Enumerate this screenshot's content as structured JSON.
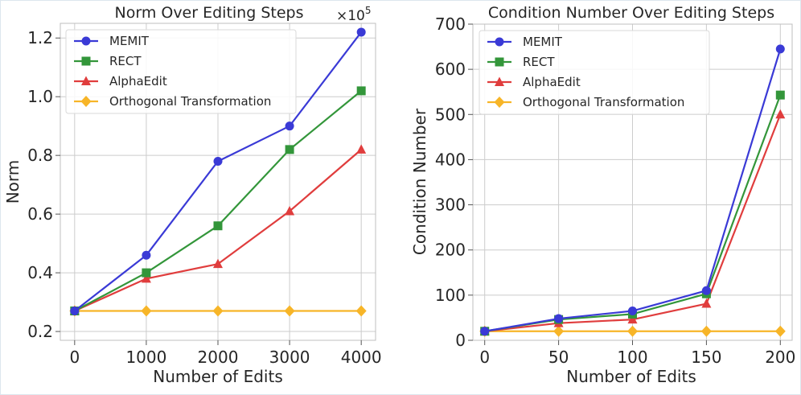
{
  "colors": {
    "memit": "#3a3ad6",
    "rect": "#33963a",
    "alphaedit": "#e03d3d",
    "orthogonal": "#f7b528",
    "grid": "#cccccc"
  },
  "chart_data": [
    {
      "type": "line",
      "title": "Norm Over Editing Steps",
      "xlabel": "Number of Edits",
      "ylabel": "Norm",
      "scale_label": "×10",
      "scale_exponent": "5",
      "x": [
        0,
        1000,
        2000,
        3000,
        4000
      ],
      "xticks": [
        "0",
        "1000",
        "2000",
        "3000",
        "4000"
      ],
      "yticks": [
        "0.2",
        "0.4",
        "0.6",
        "0.8",
        "1.0",
        "1.2"
      ],
      "xlim": [
        -200,
        4200
      ],
      "ylim": [
        0.17,
        1.25
      ],
      "grid": true,
      "legend_position": "top-left",
      "series": [
        {
          "name": "MEMIT",
          "marker": "circle",
          "color_key": "memit",
          "values": [
            27000,
            46000,
            78000,
            90000,
            122000
          ]
        },
        {
          "name": "RECT",
          "marker": "square",
          "color_key": "rect",
          "values": [
            27000,
            40000,
            56000,
            82000,
            102000
          ]
        },
        {
          "name": "AlphaEdit",
          "marker": "triangle",
          "color_key": "alphaedit",
          "values": [
            27000,
            38000,
            43000,
            61000,
            82000
          ]
        },
        {
          "name": "Orthogonal Transformation",
          "marker": "diamond",
          "color_key": "orthogonal",
          "values": [
            27000,
            27000,
            27000,
            27000,
            27000
          ]
        }
      ]
    },
    {
      "type": "line",
      "title": "Condition Number Over Editing Steps",
      "xlabel": "Number of Edits",
      "ylabel": "Condition Number",
      "x": [
        0,
        50,
        100,
        150,
        200
      ],
      "xticks": [
        "0",
        "50",
        "100",
        "150",
        "200"
      ],
      "yticks": [
        "0",
        "100",
        "200",
        "300",
        "400",
        "500",
        "600",
        "700"
      ],
      "xlim": [
        -8,
        208
      ],
      "ylim": [
        0,
        700
      ],
      "grid": true,
      "legend_position": "top-left",
      "series": [
        {
          "name": "MEMIT",
          "marker": "circle",
          "color_key": "memit",
          "values": [
            20,
            48,
            65,
            110,
            645
          ]
        },
        {
          "name": "RECT",
          "marker": "square",
          "color_key": "rect",
          "values": [
            20,
            46,
            58,
            103,
            543
          ]
        },
        {
          "name": "AlphaEdit",
          "marker": "triangle",
          "color_key": "alphaedit",
          "values": [
            20,
            38,
            46,
            81,
            500
          ]
        },
        {
          "name": "Orthogonal Transformation",
          "marker": "diamond",
          "color_key": "orthogonal",
          "values": [
            20,
            20,
            20,
            20,
            20
          ]
        }
      ]
    }
  ]
}
